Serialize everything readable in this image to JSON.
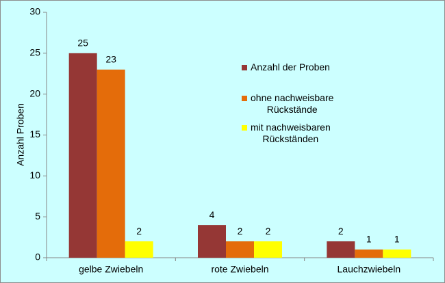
{
  "chart_data": {
    "type": "bar",
    "y_label": "Anzahl Proben",
    "categories": [
      "gelbe Zwiebeln",
      "rote Zwiebeln",
      "Lauchzwiebeln"
    ],
    "series": [
      {
        "name": "Anzahl der Proben",
        "color": "#953735",
        "values": [
          25,
          4,
          2
        ]
      },
      {
        "name": "ohne nachweisbare\nRückstände",
        "color": "#e46c0a",
        "values": [
          23,
          2,
          1
        ]
      },
      {
        "name": "mit nachweisbaren\nRückständen",
        "color": "#ffff00",
        "values": [
          2,
          2,
          1
        ]
      }
    ],
    "ylim": [
      0,
      30
    ],
    "yticks": [
      0,
      5,
      10,
      15,
      20,
      25,
      30
    ],
    "grid": false,
    "legend": "right"
  }
}
